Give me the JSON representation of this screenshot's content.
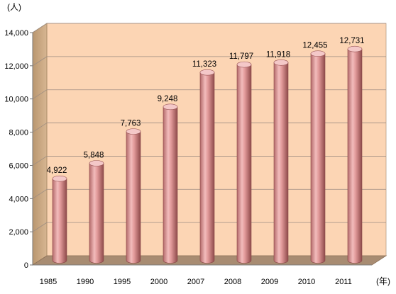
{
  "chart_data": {
    "type": "bar",
    "xlabel": "(年)",
    "ylabel": "(人)",
    "categories": [
      "1985",
      "1990",
      "1995",
      "2000",
      "2007",
      "2008",
      "2009",
      "2010",
      "2011"
    ],
    "values": [
      4922,
      5848,
      7763,
      9248,
      11323,
      11797,
      11918,
      12455,
      12731
    ],
    "data_labels": [
      "4,922",
      "5,848",
      "7,763",
      "9,248",
      "11,323",
      "11,797",
      "11,918",
      "12,455",
      "12,731"
    ],
    "ylim": [
      0,
      14000
    ],
    "yticks": [
      0,
      2000,
      4000,
      6000,
      8000,
      10000,
      12000,
      14000
    ],
    "ytick_labels": [
      "0",
      "2,000",
      "4,000",
      "6,000",
      "8,000",
      "10,000",
      "12,000",
      "14,000"
    ],
    "grid": true,
    "style": "3d-cylinder",
    "colors": {
      "plot_background": "#fcd5b4",
      "side_wall": "#cdac8a",
      "floor": "#a88c72",
      "bar": "#e6a0a0",
      "grid": "#9e8e82"
    }
  }
}
